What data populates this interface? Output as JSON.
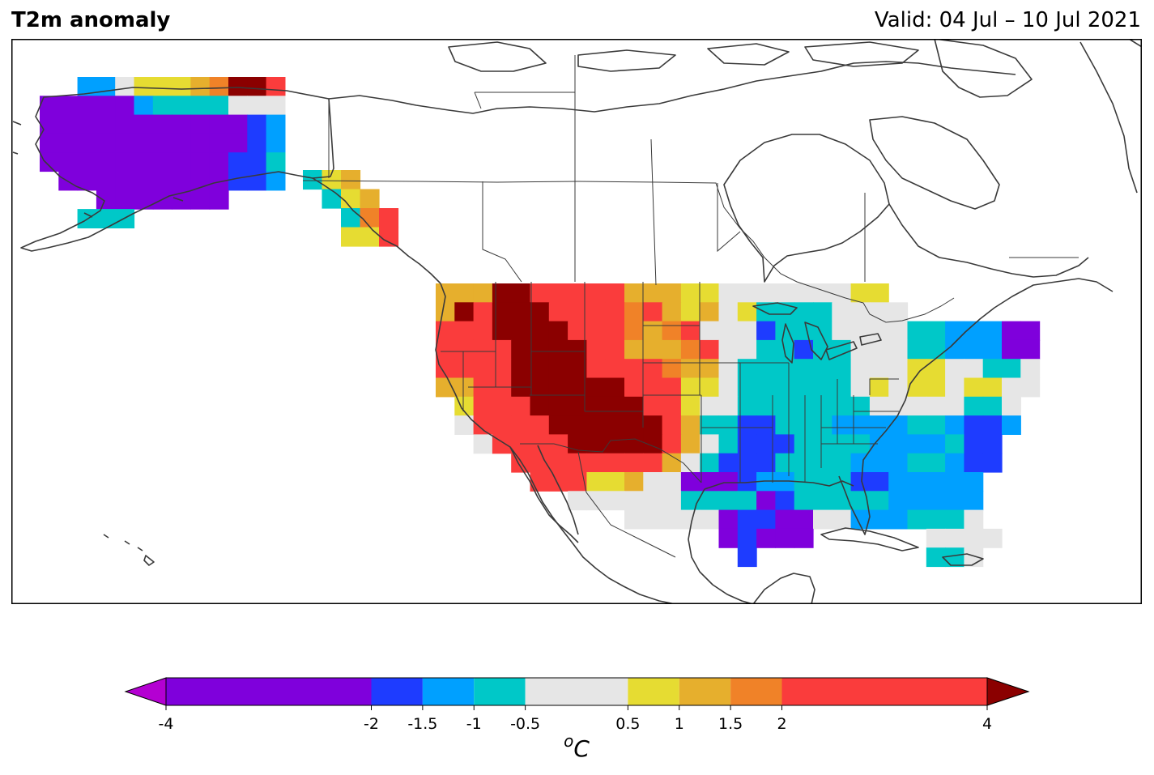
{
  "header": {
    "title": "T2m anomaly",
    "valid": "Valid: 04 Jul – 10 Jul 2021"
  },
  "colorbar": {
    "unit_base": "o",
    "unit_letter": "C",
    "ticks": [
      -4,
      -2,
      -1.5,
      -1,
      -0.5,
      0.5,
      1,
      1.5,
      2,
      4
    ],
    "tick_labels": [
      "-4",
      "-2",
      "-1.5",
      "-1",
      "-0.5",
      "0.5",
      "1",
      "1.5",
      "2",
      "4"
    ],
    "bins": [
      {
        "from": -4,
        "to": -2,
        "color": "#7f00dc"
      },
      {
        "from": -2,
        "to": -1.5,
        "color": "#1e3cff"
      },
      {
        "from": -1.5,
        "to": -1,
        "color": "#00a0ff"
      },
      {
        "from": -1,
        "to": -0.5,
        "color": "#00c8c8"
      },
      {
        "from": -0.5,
        "to": 0.5,
        "color": "#e6e6e6"
      },
      {
        "from": 0.5,
        "to": 1,
        "color": "#e6dc32"
      },
      {
        "from": 1,
        "to": 1.5,
        "color": "#e6af2d"
      },
      {
        "from": 1.5,
        "to": 2,
        "color": "#f08228"
      },
      {
        "from": 2,
        "to": 4,
        "color": "#fa3c3c"
      }
    ],
    "under_color": "#b400d2",
    "over_color": "#8b0000"
  },
  "map_colors": {
    "P": "#7f00dc",
    "B": "#1e3cff",
    "L": "#00a0ff",
    "C": "#00c8c8",
    "G": "#e6e6e6",
    "Y": "#e6dc32",
    "O": "#e6af2d",
    "R": "#f08228",
    "r": "#fa3c3c",
    "D": "#8b0000",
    "coast": "#3a3a3a"
  },
  "map_grid": {
    "alaska": [
      "..LLGYYYORDDr",
      "PPPPPLCCCCGGG",
      "PPPPPPPPPPPBL",
      "PPPPPPPPPPPBL",
      "PPPPPPPPPPBBC",
      ".PPPPPPPPPBBL",
      "...PPPPPPP...",
      "..CCC........"
    ],
    "panhandle": [
      "CYO..",
      ".CYO.",
      "..CRr",
      "..YYr"
    ],
    "conus": [
      "OOODDrrrrrOOOYYGGGGGGGYY.........",
      "ODrDDDrrrrRrOYOGYCCCCGGGG........",
      "rrrDDDDrrrRORrGGGBCCCGGGGCCLLLPP.",
      "rrrrDDDDrrOOORrGGCCBCCGGGCCLLLPP.",
      "rrrrDDDDrrrrROOGCCCCCCGGGYYGGCCG.",
      "OOrrDDDDDDrrrYYGCCCCCCGYGYYGYYGG.",
      ".YrrrDDDDDDrrYGGCCCCCCCGGGGGCCG..",
      ".GrrrrDDDDDDrOCCBBCCCLLLLCCLBBL..",
      "..GrrrrDDDDDrOGCBBBCCCCLLLLCBB...",
      "....rrrrrrrrOGCBBBCCCCLLLCCLBB...",
      ".....rrrYYOGGPPPBLLCCCBBLLLLL....",
      ".......GGGGGGCCCCPBCCCCCLLLLL....",
      "..........GGGGGPBBPPGGLLLCCCG....",
      "...............PBPPP......GGGG...",
      "................B.........CCG...."
    ]
  }
}
